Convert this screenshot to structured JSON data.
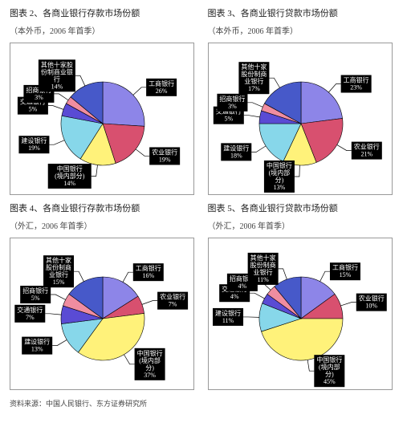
{
  "source_line": "资料来源：中国人民银行、东方证券研究所",
  "colors": {
    "工商银行": "#8d85e8",
    "农业银行": "#d8506f",
    "中国银行(境内部分)": "#fff27a",
    "建设银行": "#87d7ea",
    "交通银行": "#5a4bd4",
    "招商银行": "#f08da0",
    "其他十家股份制商业银行": "#4759c9"
  },
  "charts": [
    {
      "title": "图表 2、各商业银行存款市场份额",
      "subtitle": "（本外币，2006 年首季）",
      "slices": [
        {
          "key": "工商银行",
          "label": "工商银行\n26%",
          "value": 26
        },
        {
          "key": "农业银行",
          "label": "农业银行\n19%",
          "value": 19
        },
        {
          "key": "中国银行(境内部分)",
          "label": "中国银行\n(境内部分)\n14%",
          "value": 14
        },
        {
          "key": "建设银行",
          "label": "建设银行\n19%",
          "value": 19
        },
        {
          "key": "交通银行",
          "label": "交通银行\n5%",
          "value": 5
        },
        {
          "key": "招商银行",
          "label": "招商银行\n3%",
          "value": 3
        },
        {
          "key": "其他十家股份制商业银行",
          "label": "其他十家股\n份制商业银\n行\n14%",
          "value": 14
        }
      ]
    },
    {
      "title": "图表 3、各商业银行贷款市场份额",
      "subtitle": "（本外币，2006 年首季）",
      "slices": [
        {
          "key": "工商银行",
          "label": "工商银行\n23%",
          "value": 23
        },
        {
          "key": "农业银行",
          "label": "农业银行\n21%",
          "value": 21
        },
        {
          "key": "中国银行(境内部分)",
          "label": "中国银行\n(境内部\n分)\n13%",
          "value": 13
        },
        {
          "key": "建设银行",
          "label": "建设银行\n18%",
          "value": 18
        },
        {
          "key": "交通银行",
          "label": "交通银行\n5%",
          "value": 5
        },
        {
          "key": "招商银行",
          "label": "招商银行\n3%",
          "value": 3
        },
        {
          "key": "其他十家股份制商业银行",
          "label": "其他十家\n股份制商\n业银行\n17%",
          "value": 17
        }
      ]
    },
    {
      "title": "图表 4、各商业银行存款市场份额",
      "subtitle": "（外汇，2006 年首季）",
      "slices": [
        {
          "key": "工商银行",
          "label": "工商银行\n16%",
          "value": 16
        },
        {
          "key": "农业银行",
          "label": "农业银行\n7%",
          "value": 7
        },
        {
          "key": "中国银行(境内部分)",
          "label": "中国银行\n(境内部\n分)\n37%",
          "value": 37
        },
        {
          "key": "建设银行",
          "label": "建设银行\n13%",
          "value": 13
        },
        {
          "key": "交通银行",
          "label": "交通银行\n7%",
          "value": 7
        },
        {
          "key": "招商银行",
          "label": "招商银行\n5%",
          "value": 5
        },
        {
          "key": "其他十家股份制商业银行",
          "label": "其他十家\n股份制商\n业银行\n15%",
          "value": 15
        }
      ]
    },
    {
      "title": "图表 5、各商业银行贷款市场份额",
      "subtitle": "（外汇，2006 年首季）",
      "slices": [
        {
          "key": "工商银行",
          "label": "工商银行\n15%",
          "value": 15
        },
        {
          "key": "农业银行",
          "label": "农业银行\n10%",
          "value": 10
        },
        {
          "key": "中国银行(境内部分)",
          "label": "中国银行\n(境内部\n分)\n45%",
          "value": 45
        },
        {
          "key": "建设银行",
          "label": "建设银行\n11%",
          "value": 11
        },
        {
          "key": "交通银行",
          "label": "交通银行\n4%",
          "value": 4
        },
        {
          "key": "招商银行",
          "label": "招商银行\n4%",
          "value": 4
        },
        {
          "key": "其他十家股份制商业银行",
          "label": "其他十家\n股份制商\n业银行\n11%",
          "value": 11
        }
      ]
    }
  ]
}
